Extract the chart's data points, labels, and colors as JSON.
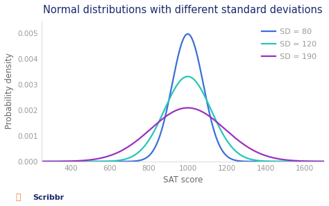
{
  "title": "Normal distributions with different standard deviations",
  "xlabel": "SAT score",
  "ylabel": "Probability density",
  "mean": 1000,
  "distributions": [
    {
      "sd": 80,
      "color": "#3a6fd8",
      "label": "SD = 80"
    },
    {
      "sd": 120,
      "color": "#26c6b8",
      "label": "SD = 120"
    },
    {
      "sd": 190,
      "color": "#9b30c0",
      "label": "SD = 190"
    }
  ],
  "xlim": [
    250,
    1700
  ],
  "xticks": [
    400,
    600,
    800,
    1000,
    1200,
    1400,
    1600
  ],
  "ylim": [
    0,
    0.0055
  ],
  "yticks": [
    0.0,
    0.001,
    0.002,
    0.003,
    0.004,
    0.005
  ],
  "background_color": "#ffffff",
  "title_fontsize": 10.5,
  "title_color": "#1a2a6c",
  "label_fontsize": 8.5,
  "label_color": "#666666",
  "tick_fontsize": 7.5,
  "tick_color": "#999999",
  "legend_fontsize": 8,
  "legend_label_color": "#999999",
  "line_width": 1.6,
  "scribbr_text": "Scribbr",
  "scribbr_text_color": "#1a2a6c",
  "scribbr_icon_color": "#e8833a"
}
